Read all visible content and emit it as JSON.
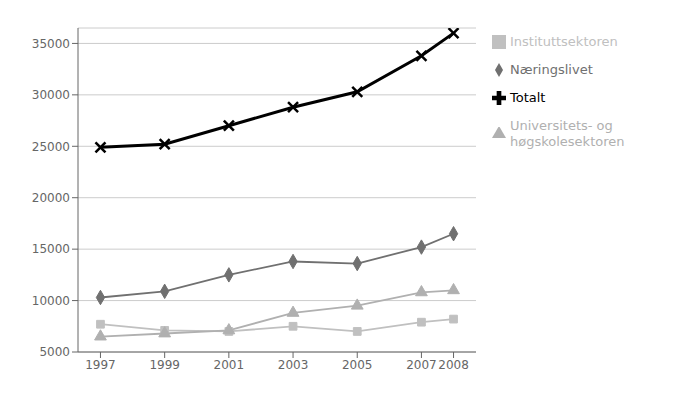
{
  "chart_data": {
    "type": "line",
    "x": [
      1997,
      1999,
      2001,
      2003,
      2005,
      2007,
      2008
    ],
    "series": [
      {
        "name": "Næringslivet",
        "color": "#707070",
        "marker": "diamond",
        "values": [
          10300,
          10900,
          12500,
          13800,
          13600,
          15200,
          16500
        ]
      },
      {
        "name": "Instituttsektoren",
        "color": "#c0c0c0",
        "marker": "square",
        "values": [
          7700,
          7100,
          7000,
          7500,
          7000,
          7900,
          8200
        ]
      },
      {
        "name": "Universitets- og\nhøgskolesektoren",
        "color": "#b0b0b0",
        "marker": "triangle",
        "values": [
          6500,
          6800,
          7100,
          8800,
          9500,
          10800,
          11000
        ]
      },
      {
        "name": "Totalt",
        "color": "#000000",
        "marker": "x",
        "values": [
          24900,
          25200,
          27000,
          28800,
          30300,
          33800,
          36000
        ]
      }
    ],
    "xlim": [
      1996.3,
      2008.7
    ],
    "xticks": [
      1997,
      1999,
      2001,
      2003,
      2005,
      2007,
      2008
    ],
    "ylim": [
      5000,
      36500
    ],
    "yticks": [
      5000,
      10000,
      15000,
      20000,
      25000,
      30000,
      35000
    ],
    "grid": true,
    "legend": "right"
  }
}
